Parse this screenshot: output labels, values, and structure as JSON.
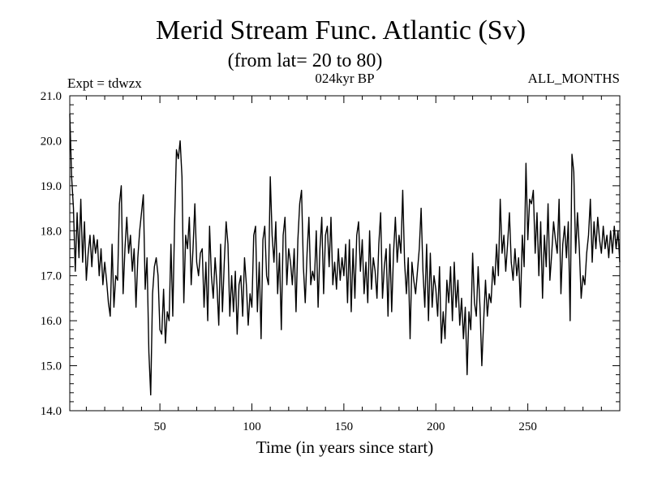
{
  "chart_data": {
    "type": "line",
    "title": "Merid Stream Func. Atlantic (Sv)",
    "subtitle": "(from lat= 20 to 80)",
    "annotations": {
      "left": "Expt = tdwzx",
      "center": "024kyr BP",
      "right": "ALL_MONTHS"
    },
    "xlabel": "Time (in years since start)",
    "ylabel": "",
    "xlim": [
      1,
      300
    ],
    "ylim": [
      14.0,
      21.0
    ],
    "xticks": [
      50,
      100,
      150,
      200,
      250
    ],
    "yticks": [
      "14.0",
      "15.0",
      "16.0",
      "17.0",
      "18.0",
      "19.0",
      "20.0",
      "21.0"
    ],
    "grid": false,
    "series": [
      {
        "name": "",
        "color": "#000000",
        "keypoints": [
          [
            1,
            20.6
          ],
          [
            2,
            19.2
          ],
          [
            3,
            18.5
          ],
          [
            4,
            17.1
          ],
          [
            5,
            18.4
          ],
          [
            6,
            17.4
          ],
          [
            7,
            18.7
          ],
          [
            8,
            17.3
          ],
          [
            9,
            18.2
          ],
          [
            10,
            16.9
          ],
          [
            11,
            17.5
          ],
          [
            12,
            17.9
          ],
          [
            13,
            17.2
          ],
          [
            14,
            17.9
          ],
          [
            15,
            17.5
          ],
          [
            16,
            17.8
          ],
          [
            17,
            17.0
          ],
          [
            18,
            17.6
          ],
          [
            19,
            16.8
          ],
          [
            20,
            17.3
          ],
          [
            21,
            16.9
          ],
          [
            22,
            16.4
          ],
          [
            23,
            16.1
          ],
          [
            24,
            17.7
          ],
          [
            25,
            16.3
          ],
          [
            26,
            17.0
          ],
          [
            27,
            16.9
          ],
          [
            28,
            18.6
          ],
          [
            29,
            19.0
          ],
          [
            30,
            16.6
          ],
          [
            31,
            17.6
          ],
          [
            32,
            18.3
          ],
          [
            33,
            17.5
          ],
          [
            34,
            17.9
          ],
          [
            35,
            17.1
          ],
          [
            36,
            17.6
          ],
          [
            37,
            16.3
          ],
          [
            38,
            17.4
          ],
          [
            39,
            18.0
          ],
          [
            40,
            18.4
          ],
          [
            41,
            18.8
          ],
          [
            42,
            16.7
          ],
          [
            43,
            17.4
          ],
          [
            44,
            15.3
          ],
          [
            45,
            14.35
          ],
          [
            46,
            16.6
          ],
          [
            47,
            17.2
          ],
          [
            48,
            17.4
          ],
          [
            49,
            17.0
          ],
          [
            50,
            15.8
          ],
          [
            51,
            15.7
          ],
          [
            52,
            16.7
          ],
          [
            53,
            15.5
          ],
          [
            54,
            16.2
          ],
          [
            55,
            16.0
          ],
          [
            56,
            17.7
          ],
          [
            57,
            16.1
          ],
          [
            58,
            18.2
          ],
          [
            59,
            19.8
          ],
          [
            60,
            19.6
          ],
          [
            61,
            20.0
          ],
          [
            62,
            19.2
          ],
          [
            63,
            16.4
          ],
          [
            64,
            17.9
          ],
          [
            65,
            17.6
          ],
          [
            66,
            18.3
          ],
          [
            67,
            16.8
          ],
          [
            68,
            17.6
          ],
          [
            69,
            18.6
          ],
          [
            70,
            17.3
          ],
          [
            71,
            17.0
          ],
          [
            72,
            17.5
          ],
          [
            73,
            17.6
          ],
          [
            74,
            16.3
          ],
          [
            75,
            17.3
          ],
          [
            76,
            16.0
          ],
          [
            77,
            18.1
          ],
          [
            78,
            17.0
          ],
          [
            79,
            16.5
          ],
          [
            80,
            17.4
          ],
          [
            81,
            16.8
          ],
          [
            82,
            15.9
          ],
          [
            83,
            17.7
          ],
          [
            84,
            16.2
          ],
          [
            85,
            17.3
          ],
          [
            86,
            18.2
          ],
          [
            87,
            17.7
          ],
          [
            88,
            16.1
          ],
          [
            89,
            17.0
          ],
          [
            90,
            16.2
          ],
          [
            91,
            17.1
          ],
          [
            92,
            15.7
          ],
          [
            93,
            16.8
          ],
          [
            94,
            17.0
          ],
          [
            95,
            16.1
          ],
          [
            96,
            17.4
          ],
          [
            97,
            16.8
          ],
          [
            98,
            15.9
          ],
          [
            99,
            16.6
          ],
          [
            100,
            16.3
          ],
          [
            101,
            17.9
          ],
          [
            102,
            18.1
          ],
          [
            103,
            16.2
          ],
          [
            104,
            17.3
          ],
          [
            105,
            15.6
          ],
          [
            106,
            17.8
          ],
          [
            107,
            18.1
          ],
          [
            108,
            17.0
          ],
          [
            109,
            16.8
          ],
          [
            110,
            19.2
          ],
          [
            111,
            17.9
          ],
          [
            112,
            17.3
          ],
          [
            113,
            18.2
          ],
          [
            114,
            16.6
          ],
          [
            115,
            17.5
          ],
          [
            116,
            15.8
          ],
          [
            117,
            17.9
          ],
          [
            118,
            18.3
          ],
          [
            119,
            16.8
          ],
          [
            120,
            17.6
          ],
          [
            121,
            17.3
          ],
          [
            122,
            16.8
          ],
          [
            123,
            17.6
          ],
          [
            124,
            16.2
          ],
          [
            125,
            17.8
          ],
          [
            126,
            18.6
          ],
          [
            127,
            18.9
          ],
          [
            128,
            17.2
          ],
          [
            129,
            16.4
          ],
          [
            130,
            17.5
          ],
          [
            131,
            18.3
          ],
          [
            132,
            16.8
          ],
          [
            133,
            17.1
          ],
          [
            134,
            16.9
          ],
          [
            135,
            18.0
          ],
          [
            136,
            16.3
          ],
          [
            137,
            17.6
          ],
          [
            138,
            18.3
          ],
          [
            139,
            16.6
          ],
          [
            140,
            17.9
          ],
          [
            141,
            18.1
          ],
          [
            142,
            17.2
          ],
          [
            143,
            18.3
          ],
          [
            144,
            16.8
          ],
          [
            145,
            17.3
          ],
          [
            146,
            16.7
          ],
          [
            147,
            17.6
          ],
          [
            148,
            16.9
          ],
          [
            149,
            17.4
          ],
          [
            150,
            17.0
          ],
          [
            151,
            17.7
          ],
          [
            152,
            16.4
          ],
          [
            153,
            17.8
          ],
          [
            154,
            16.2
          ],
          [
            155,
            17.6
          ],
          [
            156,
            16.5
          ],
          [
            157,
            17.9
          ],
          [
            158,
            18.2
          ],
          [
            159,
            17.1
          ],
          [
            160,
            17.8
          ],
          [
            161,
            16.6
          ],
          [
            162,
            17.3
          ],
          [
            163,
            16.4
          ],
          [
            164,
            18.0
          ],
          [
            165,
            16.7
          ],
          [
            166,
            17.4
          ],
          [
            167,
            17.1
          ],
          [
            168,
            16.5
          ],
          [
            169,
            17.7
          ],
          [
            170,
            18.4
          ],
          [
            171,
            16.5
          ],
          [
            172,
            17.2
          ],
          [
            173,
            17.6
          ],
          [
            174,
            16.1
          ],
          [
            175,
            17.7
          ],
          [
            176,
            16.2
          ],
          [
            177,
            17.5
          ],
          [
            178,
            18.3
          ],
          [
            179,
            17.3
          ],
          [
            180,
            17.9
          ],
          [
            181,
            17.5
          ],
          [
            182,
            18.9
          ],
          [
            183,
            17.3
          ],
          [
            184,
            16.6
          ],
          [
            185,
            17.4
          ],
          [
            186,
            15.6
          ],
          [
            187,
            17.3
          ],
          [
            188,
            16.9
          ],
          [
            189,
            16.6
          ],
          [
            190,
            17.1
          ],
          [
            191,
            17.6
          ],
          [
            192,
            18.5
          ],
          [
            193,
            17.1
          ],
          [
            194,
            16.3
          ],
          [
            195,
            17.7
          ],
          [
            196,
            16.0
          ],
          [
            197,
            17.5
          ],
          [
            198,
            16.3
          ],
          [
            199,
            17.0
          ],
          [
            200,
            16.7
          ],
          [
            201,
            16.1
          ],
          [
            202,
            17.2
          ],
          [
            203,
            15.5
          ],
          [
            204,
            16.2
          ],
          [
            205,
            15.6
          ],
          [
            206,
            16.9
          ],
          [
            207,
            16.4
          ],
          [
            208,
            17.2
          ],
          [
            209,
            16.0
          ],
          [
            210,
            17.3
          ],
          [
            211,
            16.3
          ],
          [
            212,
            16.9
          ],
          [
            213,
            15.9
          ],
          [
            214,
            16.5
          ],
          [
            215,
            15.6
          ],
          [
            216,
            16.3
          ],
          [
            217,
            14.8
          ],
          [
            218,
            16.2
          ],
          [
            219,
            15.8
          ],
          [
            220,
            17.5
          ],
          [
            221,
            16.4
          ],
          [
            222,
            16.1
          ],
          [
            223,
            17.2
          ],
          [
            224,
            16.3
          ],
          [
            225,
            15.0
          ],
          [
            226,
            16.0
          ],
          [
            227,
            16.9
          ],
          [
            228,
            16.1
          ],
          [
            229,
            16.6
          ],
          [
            230,
            16.4
          ],
          [
            231,
            17.2
          ],
          [
            232,
            16.8
          ],
          [
            233,
            17.7
          ],
          [
            234,
            17.0
          ],
          [
            235,
            18.7
          ],
          [
            236,
            17.5
          ],
          [
            237,
            17.9
          ],
          [
            238,
            17.1
          ],
          [
            239,
            17.7
          ],
          [
            240,
            18.4
          ],
          [
            241,
            17.3
          ],
          [
            242,
            16.9
          ],
          [
            243,
            17.6
          ],
          [
            244,
            17.0
          ],
          [
            245,
            17.4
          ],
          [
            246,
            16.3
          ],
          [
            247,
            17.9
          ],
          [
            248,
            17.2
          ],
          [
            249,
            19.5
          ],
          [
            250,
            17.8
          ],
          [
            251,
            18.7
          ],
          [
            252,
            18.6
          ],
          [
            253,
            18.9
          ],
          [
            254,
            17.5
          ],
          [
            255,
            18.4
          ],
          [
            256,
            17.0
          ],
          [
            257,
            18.2
          ],
          [
            258,
            16.5
          ],
          [
            259,
            17.9
          ],
          [
            260,
            17.2
          ],
          [
            261,
            18.6
          ],
          [
            262,
            16.9
          ],
          [
            263,
            17.5
          ],
          [
            264,
            18.2
          ],
          [
            265,
            17.8
          ],
          [
            266,
            17.5
          ],
          [
            267,
            18.7
          ],
          [
            268,
            16.6
          ],
          [
            269,
            17.7
          ],
          [
            270,
            18.1
          ],
          [
            271,
            17.4
          ],
          [
            272,
            18.2
          ],
          [
            273,
            16.0
          ],
          [
            274,
            19.7
          ],
          [
            275,
            19.3
          ],
          [
            276,
            17.5
          ],
          [
            277,
            18.4
          ],
          [
            278,
            17.6
          ],
          [
            279,
            16.5
          ],
          [
            280,
            17.0
          ],
          [
            281,
            16.8
          ],
          [
            282,
            17.5
          ],
          [
            283,
            17.9
          ],
          [
            284,
            18.7
          ],
          [
            285,
            17.3
          ],
          [
            286,
            18.2
          ],
          [
            287,
            17.6
          ],
          [
            288,
            18.3
          ],
          [
            289,
            17.8
          ],
          [
            290,
            17.5
          ],
          [
            291,
            18.1
          ],
          [
            292,
            17.6
          ],
          [
            293,
            17.9
          ],
          [
            294,
            17.4
          ],
          [
            295,
            18.0
          ],
          [
            296,
            17.5
          ],
          [
            297,
            18.1
          ],
          [
            298,
            17.6
          ],
          [
            299,
            18.0
          ],
          [
            300,
            17.3
          ]
        ]
      }
    ]
  }
}
